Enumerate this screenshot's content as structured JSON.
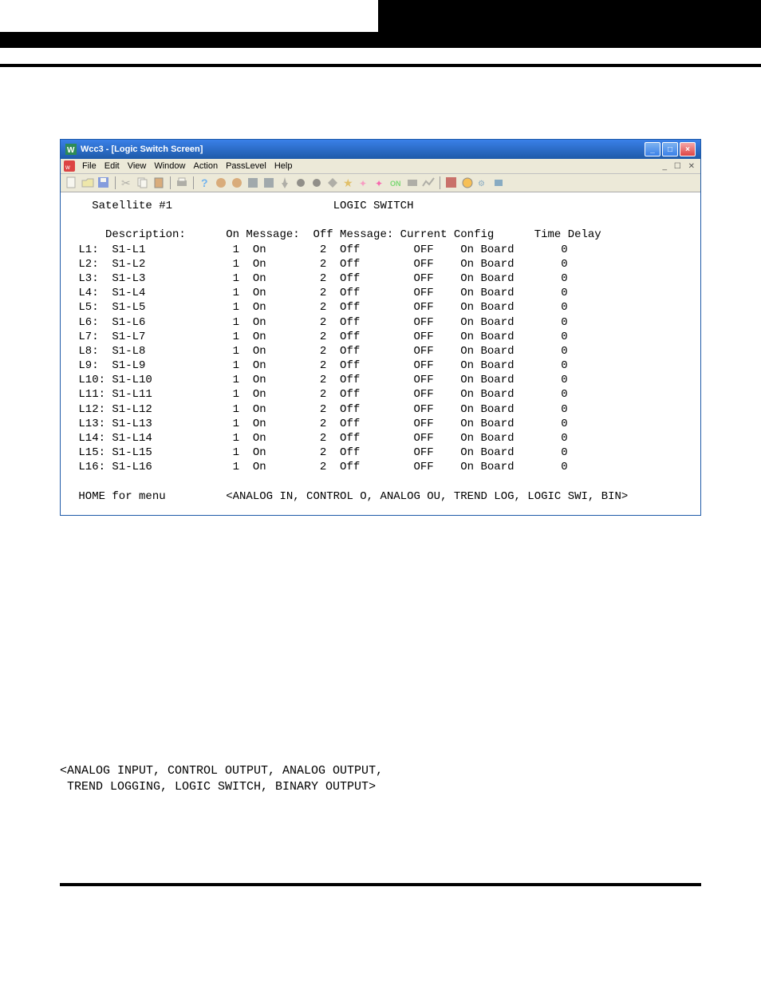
{
  "window": {
    "title": "Wcc3 - [Logic Switch Screen]",
    "menus": [
      "File",
      "Edit",
      "View",
      "Window",
      "Action",
      "PassLevel",
      "Help"
    ]
  },
  "screen": {
    "satellite": "Satellite #1",
    "title": "LOGIC SWITCH",
    "headers": {
      "description": "Description:",
      "on_message": "On Message:",
      "off_message": "Off Message:",
      "current": "Current",
      "config": "Config",
      "time_delay": "Time Delay"
    },
    "rows": [
      {
        "id": "L1:",
        "desc": "S1-L1",
        "onN": "1",
        "onT": "On",
        "offN": "2",
        "offT": "Off",
        "cur": "OFF",
        "cfg": "On Board",
        "td": "0"
      },
      {
        "id": "L2:",
        "desc": "S1-L2",
        "onN": "1",
        "onT": "On",
        "offN": "2",
        "offT": "Off",
        "cur": "OFF",
        "cfg": "On Board",
        "td": "0"
      },
      {
        "id": "L3:",
        "desc": "S1-L3",
        "onN": "1",
        "onT": "On",
        "offN": "2",
        "offT": "Off",
        "cur": "OFF",
        "cfg": "On Board",
        "td": "0"
      },
      {
        "id": "L4:",
        "desc": "S1-L4",
        "onN": "1",
        "onT": "On",
        "offN": "2",
        "offT": "Off",
        "cur": "OFF",
        "cfg": "On Board",
        "td": "0"
      },
      {
        "id": "L5:",
        "desc": "S1-L5",
        "onN": "1",
        "onT": "On",
        "offN": "2",
        "offT": "Off",
        "cur": "OFF",
        "cfg": "On Board",
        "td": "0"
      },
      {
        "id": "L6:",
        "desc": "S1-L6",
        "onN": "1",
        "onT": "On",
        "offN": "2",
        "offT": "Off",
        "cur": "OFF",
        "cfg": "On Board",
        "td": "0"
      },
      {
        "id": "L7:",
        "desc": "S1-L7",
        "onN": "1",
        "onT": "On",
        "offN": "2",
        "offT": "Off",
        "cur": "OFF",
        "cfg": "On Board",
        "td": "0"
      },
      {
        "id": "L8:",
        "desc": "S1-L8",
        "onN": "1",
        "onT": "On",
        "offN": "2",
        "offT": "Off",
        "cur": "OFF",
        "cfg": "On Board",
        "td": "0"
      },
      {
        "id": "L9:",
        "desc": "S1-L9",
        "onN": "1",
        "onT": "On",
        "offN": "2",
        "offT": "Off",
        "cur": "OFF",
        "cfg": "On Board",
        "td": "0"
      },
      {
        "id": "L10:",
        "desc": "S1-L10",
        "onN": "1",
        "onT": "On",
        "offN": "2",
        "offT": "Off",
        "cur": "OFF",
        "cfg": "On Board",
        "td": "0"
      },
      {
        "id": "L11:",
        "desc": "S1-L11",
        "onN": "1",
        "onT": "On",
        "offN": "2",
        "offT": "Off",
        "cur": "OFF",
        "cfg": "On Board",
        "td": "0"
      },
      {
        "id": "L12:",
        "desc": "S1-L12",
        "onN": "1",
        "onT": "On",
        "offN": "2",
        "offT": "Off",
        "cur": "OFF",
        "cfg": "On Board",
        "td": "0"
      },
      {
        "id": "L13:",
        "desc": "S1-L13",
        "onN": "1",
        "onT": "On",
        "offN": "2",
        "offT": "Off",
        "cur": "OFF",
        "cfg": "On Board",
        "td": "0"
      },
      {
        "id": "L14:",
        "desc": "S1-L14",
        "onN": "1",
        "onT": "On",
        "offN": "2",
        "offT": "Off",
        "cur": "OFF",
        "cfg": "On Board",
        "td": "0"
      },
      {
        "id": "L15:",
        "desc": "S1-L15",
        "onN": "1",
        "onT": "On",
        "offN": "2",
        "offT": "Off",
        "cur": "OFF",
        "cfg": "On Board",
        "td": "0"
      },
      {
        "id": "L16:",
        "desc": "S1-L16",
        "onN": "1",
        "onT": "On",
        "offN": "2",
        "offT": "Off",
        "cur": "OFF",
        "cfg": "On Board",
        "td": "0"
      }
    ],
    "footer_left": "HOME for menu",
    "footer_right": "<ANALOG IN, CONTROL O, ANALOG OU, TREND LOG, LOGIC SWI, BIN>"
  },
  "page_text_line1": "<ANALOG INPUT, CONTROL OUTPUT, ANALOG OUTPUT,",
  "page_text_line2": " TREND LOGGING, LOGIC SWITCH, BINARY OUTPUT>",
  "toolbar_colors": {
    "new": "#ffffff",
    "open": "#f0e68c",
    "save": "#4169e1",
    "cut": "#888",
    "copy": "#888",
    "paste": "#888",
    "print": "#888",
    "help": "#1e90ff",
    "misc": "#cd853f",
    "star": "#daa520",
    "wand": "#ff69b4",
    "on": "#32cd32",
    "box1": "#b22222",
    "box2": "#ffa500",
    "tool": "#4682b4"
  }
}
